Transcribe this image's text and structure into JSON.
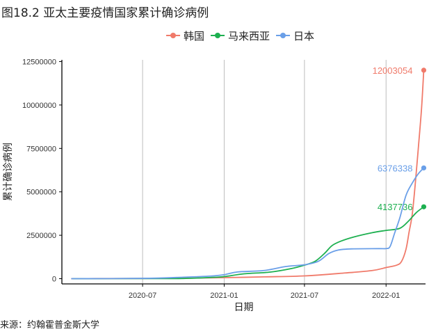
{
  "figure": {
    "title": "图18.2 亚太主要疫情国家累计确诊病例",
    "source": "来源：约翰霍普金斯大学"
  },
  "chart_data": {
    "type": "line",
    "xlabel": "日期",
    "ylabel": "累计确诊病例",
    "x_tick_labels": [
      "2020-07",
      "2021-01",
      "2021-07",
      "2022-01"
    ],
    "x_ticks": [
      "2020-07-01",
      "2021-01-01",
      "2021-07-01",
      "2022-01-01"
    ],
    "y_tick_labels": [
      "0",
      "2500000",
      "5000000",
      "7500000",
      "10000000",
      "12500000"
    ],
    "y_ticks": [
      0,
      2500000,
      5000000,
      7500000,
      10000000,
      12500000
    ],
    "xlim": [
      "2020-01-01",
      "2022-03-31"
    ],
    "ylim": [
      -300000,
      12600000
    ],
    "grid": "vertical-major",
    "legend_position": "top",
    "series": [
      {
        "name": "韩国",
        "color": "#F07A6A",
        "end_label": "12003054",
        "points": [
          [
            "2020-01-22",
            0
          ],
          [
            "2020-03-15",
            8000
          ],
          [
            "2020-07-01",
            13000
          ],
          [
            "2020-10-01",
            25000
          ],
          [
            "2021-01-01",
            60000
          ],
          [
            "2021-04-01",
            105000
          ],
          [
            "2021-07-01",
            160000
          ],
          [
            "2021-10-01",
            330000
          ],
          [
            "2021-12-01",
            470000
          ],
          [
            "2022-01-01",
            640000
          ],
          [
            "2022-01-25",
            780000
          ],
          [
            "2022-02-05",
            1000000
          ],
          [
            "2022-02-15",
            1700000
          ],
          [
            "2022-02-22",
            2700000
          ],
          [
            "2022-03-01",
            3700000
          ],
          [
            "2022-03-08",
            5500000
          ],
          [
            "2022-03-15",
            7600000
          ],
          [
            "2022-03-22",
            9800000
          ],
          [
            "2022-03-27",
            12003054
          ]
        ]
      },
      {
        "name": "马来西亚",
        "color": "#1DB050",
        "end_label": "4137736",
        "points": [
          [
            "2020-01-25",
            0
          ],
          [
            "2020-07-01",
            8600
          ],
          [
            "2020-10-01",
            12000
          ],
          [
            "2020-12-01",
            70000
          ],
          [
            "2021-01-01",
            120000
          ],
          [
            "2021-02-15",
            280000
          ],
          [
            "2021-04-15",
            380000
          ],
          [
            "2021-06-01",
            580000
          ],
          [
            "2021-07-01",
            780000
          ],
          [
            "2021-07-25",
            1000000
          ],
          [
            "2021-08-15",
            1450000
          ],
          [
            "2021-09-01",
            1900000
          ],
          [
            "2021-09-20",
            2150000
          ],
          [
            "2021-10-20",
            2400000
          ],
          [
            "2021-12-01",
            2650000
          ],
          [
            "2022-01-01",
            2780000
          ],
          [
            "2022-02-01",
            2900000
          ],
          [
            "2022-02-20",
            3300000
          ],
          [
            "2022-03-10",
            3800000
          ],
          [
            "2022-03-27",
            4137736
          ]
        ]
      },
      {
        "name": "日本",
        "color": "#6A9FE8",
        "end_label": "6376338",
        "points": [
          [
            "2020-01-22",
            0
          ],
          [
            "2020-07-01",
            18000
          ],
          [
            "2020-10-01",
            85000
          ],
          [
            "2020-12-01",
            150000
          ],
          [
            "2021-01-01",
            230000
          ],
          [
            "2021-02-01",
            390000
          ],
          [
            "2021-04-01",
            470000
          ],
          [
            "2021-05-20",
            700000
          ],
          [
            "2021-07-01",
            800000
          ],
          [
            "2021-08-01",
            1000000
          ],
          [
            "2021-08-25",
            1450000
          ],
          [
            "2021-09-15",
            1650000
          ],
          [
            "2021-10-15",
            1715000
          ],
          [
            "2021-12-15",
            1730000
          ],
          [
            "2022-01-01",
            1735000
          ],
          [
            "2022-01-10",
            1850000
          ],
          [
            "2022-01-20",
            2600000
          ],
          [
            "2022-02-01",
            3500000
          ],
          [
            "2022-02-15",
            4800000
          ],
          [
            "2022-03-01",
            5500000
          ],
          [
            "2022-03-15",
            6050000
          ],
          [
            "2022-03-27",
            6376338
          ]
        ]
      }
    ]
  }
}
